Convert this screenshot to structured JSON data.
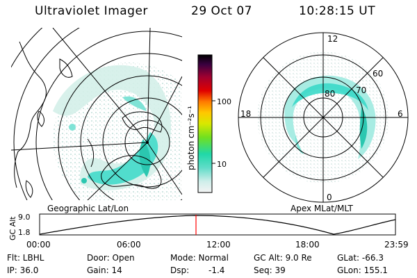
{
  "header": {
    "title": "Ultraviolet Imager",
    "date": "29 Oct 07",
    "time": "10:28:15 UT"
  },
  "left_map": {
    "label": "Geographic Lat/Lon"
  },
  "right_map": {
    "label": "Apex MLat/MLT",
    "lat_labels": [
      "80",
      "70",
      "60"
    ],
    "mlt_labels": {
      "top": "12",
      "right": "6",
      "bottom": "0",
      "left": "18"
    }
  },
  "colorbar": {
    "unit_label": "photon cm⁻²s⁻¹",
    "ticks": [
      "100",
      "10"
    ]
  },
  "altitude_plot": {
    "ylabel": "GC Alt",
    "yticks": [
      "9.0",
      "1.8"
    ],
    "xticks": [
      "00:00",
      "06:00",
      "12:00",
      "18:00",
      "23:59"
    ],
    "marker_time": "10:28",
    "line_color": "#000000",
    "marker_color": "#ff0000"
  },
  "status": {
    "row1": {
      "flt": "Flt: LBHL",
      "door": "Door: Open",
      "mode": "Mode: Normal",
      "gc_alt": "GC Alt: 9.0 Re",
      "glat": "GLat: -66.3"
    },
    "row2": {
      "ip": "IP: 36.0",
      "gain": "Gain: 14",
      "dsp_label": "Dsp:",
      "dsp_value": "-1.4",
      "seq": "Seq: 39",
      "glon": "GLon: 155.1"
    }
  },
  "colors": {
    "aurora_main": "#3ad9c8",
    "aurora_light": "#c8f0ec",
    "aurora_faint": "#e4ecea"
  }
}
